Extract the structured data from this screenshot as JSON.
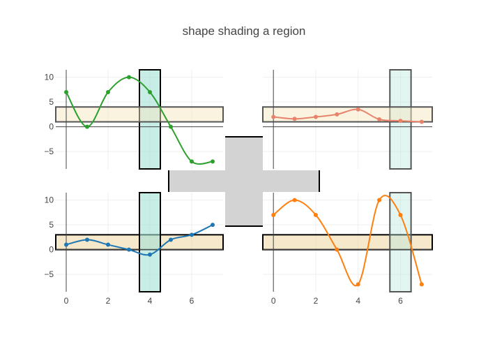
{
  "chart_data": {
    "title": "shape shading a region",
    "type": "line",
    "subplots": [
      {
        "id": "top-left",
        "x": [
          0,
          1,
          2,
          3,
          4,
          5,
          6,
          7
        ],
        "y": [
          7,
          0,
          7,
          10,
          7,
          0,
          -7,
          -7
        ],
        "color": "#2ca02c",
        "xlim": [
          -0.5,
          7.5
        ],
        "ylim": [
          -8.5,
          11.5
        ],
        "yticks": [
          10,
          5,
          0,
          -5
        ],
        "ytick_labels": [
          "10",
          "5",
          "0",
          "−5"
        ],
        "shapes": [
          {
            "kind": "xband",
            "from": 3.5,
            "to": 4.5,
            "fill": "#a3e0d6",
            "opacity": 0.6,
            "line": "#000000"
          },
          {
            "kind": "yband",
            "from": 1,
            "to": 4,
            "fill": "#f3e7c2",
            "opacity": 0.5,
            "line": "#555555"
          }
        ]
      },
      {
        "id": "top-right",
        "x": [
          0,
          1,
          2,
          3,
          4,
          5,
          6,
          7
        ],
        "y": [
          2,
          1.6,
          2,
          2.5,
          3.5,
          1.5,
          1.2,
          1
        ],
        "color": "#e8836b",
        "xlim": [
          -0.5,
          7.5
        ],
        "ylim": [
          -8.5,
          11.5
        ],
        "yticks": [],
        "ytick_labels": [],
        "shapes": [
          {
            "kind": "xband",
            "from": 5.5,
            "to": 6.5,
            "fill": "#b6e6dd",
            "opacity": 0.4,
            "line": "#555555"
          },
          {
            "kind": "yband",
            "from": 1,
            "to": 4,
            "fill": "#f3e7c2",
            "opacity": 0.5,
            "line": "#555555"
          }
        ]
      },
      {
        "id": "bottom-left",
        "x": [
          0,
          1,
          2,
          3,
          4,
          5,
          6,
          7
        ],
        "y": [
          1,
          2,
          1,
          0,
          -1,
          2,
          3,
          5
        ],
        "color": "#1f77b4",
        "xlim": [
          -0.5,
          7.5
        ],
        "ylim": [
          -8.5,
          11.5
        ],
        "yticks": [
          10,
          5,
          0,
          -5
        ],
        "ytick_labels": [
          "10",
          "5",
          "0",
          "−5"
        ],
        "xticks": [
          0,
          2,
          4,
          6
        ],
        "xtick_labels": [
          "0",
          "2",
          "4",
          "6"
        ],
        "shapes": [
          {
            "kind": "yband",
            "from": 0,
            "to": 3,
            "fill": "#efd9a8",
            "opacity": 0.6,
            "line": "#000000"
          },
          {
            "kind": "xband",
            "from": 3.5,
            "to": 4.5,
            "fill": "#a3e0d6",
            "opacity": 0.6,
            "line": "#000000"
          }
        ]
      },
      {
        "id": "bottom-right",
        "x": [
          0,
          1,
          2,
          3,
          4,
          5,
          6,
          7
        ],
        "y": [
          7,
          10,
          7,
          0,
          -7,
          10,
          7,
          -7
        ],
        "color": "#ff7f0e",
        "xlim": [
          -0.5,
          7.5
        ],
        "ylim": [
          -8.5,
          11.5
        ],
        "yticks": [],
        "ytick_labels": [],
        "xticks": [
          0,
          2,
          4,
          6
        ],
        "xtick_labels": [
          "0",
          "2",
          "4",
          "6"
        ],
        "shapes": [
          {
            "kind": "yband",
            "from": 0,
            "to": 3,
            "fill": "#efd9a8",
            "opacity": 0.6,
            "line": "#000000"
          },
          {
            "kind": "xband",
            "from": 5.5,
            "to": 6.5,
            "fill": "#b6e6dd",
            "opacity": 0.4,
            "line": "#555555"
          }
        ]
      }
    ],
    "cross": {
      "fill": "#d3d3d3",
      "line": "#000000"
    },
    "grid": true,
    "zero_line_color": "#444444",
    "grid_color": "#eeeeee"
  }
}
